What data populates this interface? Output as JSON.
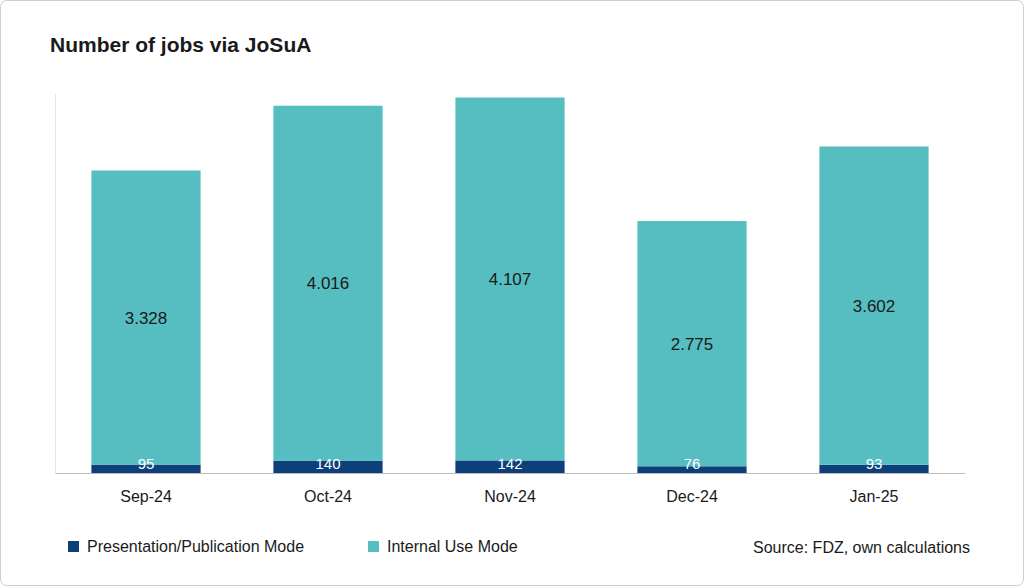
{
  "chart_data": {
    "type": "bar",
    "title": "Number of jobs via JoSuA",
    "categories": [
      "Sep-24",
      "Oct-24",
      "Nov-24",
      "Dec-24",
      "Jan-25"
    ],
    "series": [
      {
        "name": "Presentation/Publication Mode",
        "color": "#0d3f7a",
        "values": [
          95,
          140,
          142,
          76,
          93
        ]
      },
      {
        "name": "Internal Use Mode",
        "color": "#56bec1",
        "values": [
          3328,
          4016,
          4107,
          2775,
          3602
        ],
        "value_labels": [
          "3.328",
          "4.016",
          "4.107",
          "2.775",
          "3.602"
        ]
      }
    ],
    "ylim": [
      0,
      4300
    ],
    "stacked": true,
    "data_labels": true,
    "legend": "bottom",
    "tick_labels": "x",
    "source": "Source: FDZ, own calculations"
  }
}
